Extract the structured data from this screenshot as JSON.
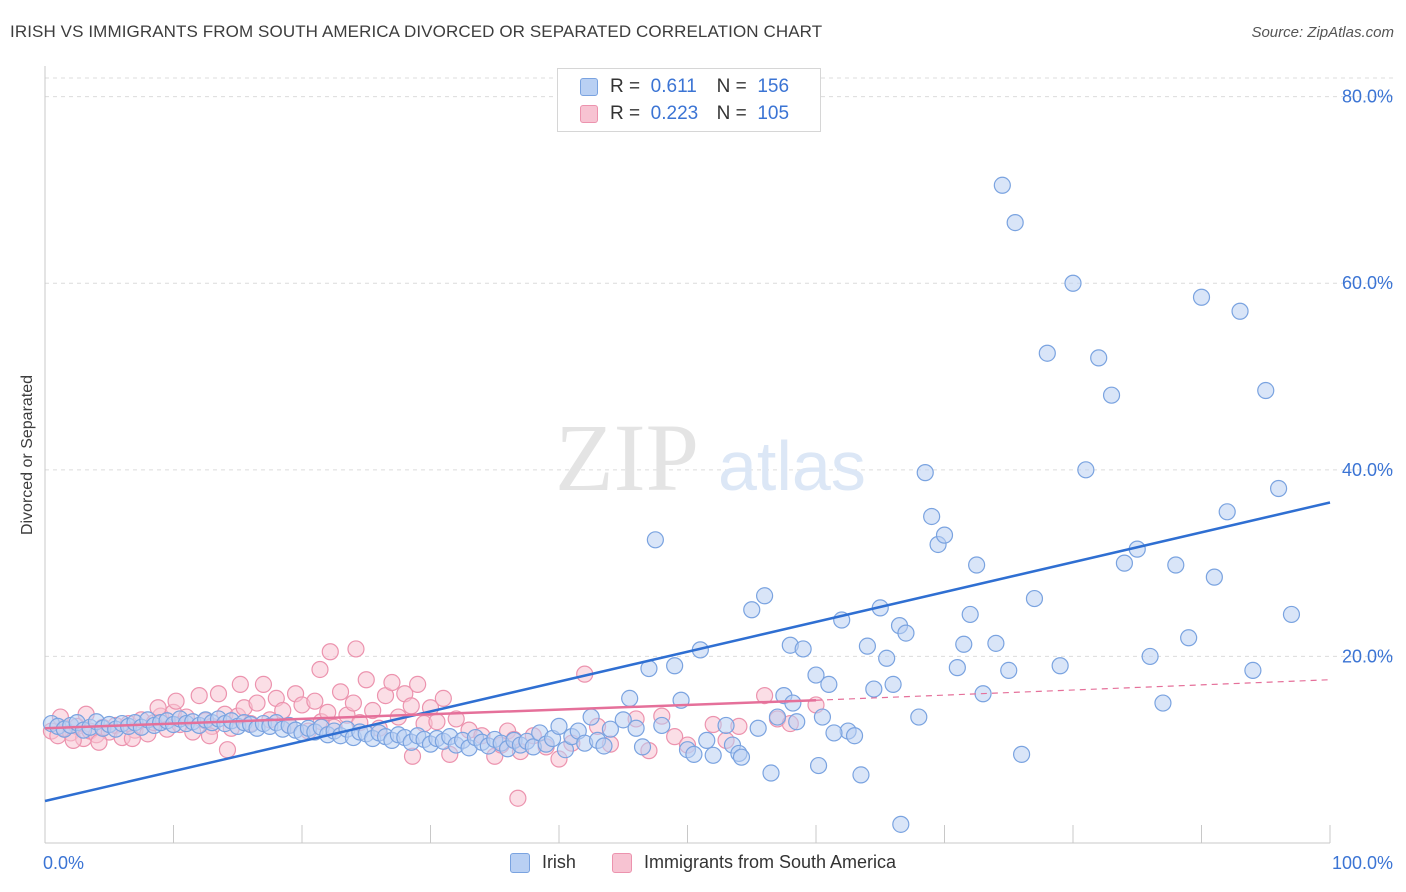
{
  "title": "IRISH VS IMMIGRANTS FROM SOUTH AMERICA DIVORCED OR SEPARATED CORRELATION CHART",
  "source": "Source: ZipAtlas.com",
  "watermark": {
    "zip": "ZIP",
    "atlas": "atlas"
  },
  "colors": {
    "irish_fill": "#b9d0f3",
    "irish_stroke": "#7aa3e0",
    "irish_line": "#2f6fd2",
    "sa_fill": "#f7c3d2",
    "sa_stroke": "#ec93ae",
    "sa_line": "#e5709a",
    "accent_text": "#3b74d4",
    "grid": "#dcdcdc"
  },
  "legend_top": {
    "rows": [
      {
        "r_label": "R =",
        "r_value": "0.611",
        "n_label": "N =",
        "n_value": "156"
      },
      {
        "r_label": "R =",
        "r_value": "0.223",
        "n_label": "N =",
        "n_value": "105"
      }
    ]
  },
  "legend_bottom": {
    "irish": "Irish",
    "south_america": "Immigrants from South America"
  },
  "chart_data": {
    "type": "scatter",
    "title": "IRISH VS IMMIGRANTS FROM SOUTH AMERICA DIVORCED OR SEPARATED CORRELATION CHART",
    "xlabel": "",
    "ylabel": "Divorced or Separated",
    "xlim": [
      0,
      100
    ],
    "ylim": [
      0,
      82
    ],
    "x_tick_labels": [
      "0.0%",
      "100.0%"
    ],
    "y_ticks": [
      20,
      40,
      60,
      80
    ],
    "y_tick_labels": [
      "20.0%",
      "40.0%",
      "60.0%",
      "80.0%"
    ],
    "grid": "horizontal dashed",
    "legend_placement": "top-center",
    "series": [
      {
        "name": "Irish",
        "R": 0.611,
        "N": 156,
        "trend": {
          "x": [
            0,
            100
          ],
          "y": [
            4.5,
            36.5
          ],
          "style": "solid"
        },
        "points": [
          [
            0.5,
            12.8
          ],
          [
            1,
            12.5
          ],
          [
            1.5,
            12.2
          ],
          [
            2,
            12.6
          ],
          [
            2.5,
            12.9
          ],
          [
            3,
            12.1
          ],
          [
            3.5,
            12.4
          ],
          [
            4,
            13.0
          ],
          [
            4.5,
            12.3
          ],
          [
            5,
            12.7
          ],
          [
            5.5,
            12.2
          ],
          [
            6,
            12.8
          ],
          [
            6.5,
            12.5
          ],
          [
            7,
            12.9
          ],
          [
            7.5,
            12.4
          ],
          [
            8,
            13.2
          ],
          [
            8.5,
            12.6
          ],
          [
            9,
            12.9
          ],
          [
            9.5,
            13.1
          ],
          [
            10,
            12.7
          ],
          [
            10.5,
            13.3
          ],
          [
            11,
            12.8
          ],
          [
            11.5,
            13.0
          ],
          [
            12,
            12.6
          ],
          [
            12.5,
            13.2
          ],
          [
            13,
            12.9
          ],
          [
            13.5,
            13.3
          ],
          [
            14,
            12.8
          ],
          [
            14.5,
            13.1
          ],
          [
            15,
            12.5
          ],
          [
            15.5,
            12.9
          ],
          [
            16,
            12.7
          ],
          [
            16.5,
            12.3
          ],
          [
            17,
            12.8
          ],
          [
            17.5,
            12.5
          ],
          [
            18,
            12.9
          ],
          [
            18.5,
            12.2
          ],
          [
            19,
            12.6
          ],
          [
            19.5,
            12.1
          ],
          [
            20,
            11.8
          ],
          [
            20.5,
            12.3
          ],
          [
            21,
            11.9
          ],
          [
            21.5,
            12.4
          ],
          [
            22,
            11.6
          ],
          [
            22.5,
            12.0
          ],
          [
            23,
            11.5
          ],
          [
            23.5,
            12.2
          ],
          [
            24,
            11.3
          ],
          [
            24.5,
            11.9
          ],
          [
            25,
            11.7
          ],
          [
            25.5,
            11.2
          ],
          [
            26,
            11.8
          ],
          [
            26.5,
            11.4
          ],
          [
            27,
            11.0
          ],
          [
            27.5,
            11.6
          ],
          [
            28,
            11.3
          ],
          [
            28.5,
            10.8
          ],
          [
            29,
            11.5
          ],
          [
            29.5,
            11.1
          ],
          [
            30,
            10.6
          ],
          [
            30.5,
            11.2
          ],
          [
            31,
            10.9
          ],
          [
            31.5,
            11.4
          ],
          [
            32,
            10.5
          ],
          [
            32.5,
            11.0
          ],
          [
            33,
            10.2
          ],
          [
            33.5,
            11.3
          ],
          [
            34,
            10.8
          ],
          [
            34.5,
            10.4
          ],
          [
            35,
            11.1
          ],
          [
            35.5,
            10.7
          ],
          [
            36,
            10.1
          ],
          [
            36.5,
            11.0
          ],
          [
            37,
            10.5
          ],
          [
            37.5,
            10.9
          ],
          [
            38,
            10.3
          ],
          [
            38.5,
            11.8
          ],
          [
            39,
            10.6
          ],
          [
            39.5,
            11.2
          ],
          [
            40,
            12.5
          ],
          [
            40.5,
            10.0
          ],
          [
            41,
            11.4
          ],
          [
            41.5,
            12.0
          ],
          [
            42,
            10.7
          ],
          [
            42.5,
            13.5
          ],
          [
            43,
            11.0
          ],
          [
            43.5,
            10.4
          ],
          [
            44,
            12.2
          ],
          [
            45,
            13.2
          ],
          [
            45.5,
            15.5
          ],
          [
            46,
            12.3
          ],
          [
            46.5,
            10.3
          ],
          [
            47,
            18.7
          ],
          [
            47.5,
            32.5
          ],
          [
            48,
            12.6
          ],
          [
            49,
            19.0
          ],
          [
            49.5,
            15.3
          ],
          [
            50,
            10.0
          ],
          [
            50.5,
            9.5
          ],
          [
            51,
            20.7
          ],
          [
            51.5,
            11.0
          ],
          [
            52,
            9.4
          ],
          [
            53,
            12.6
          ],
          [
            53.5,
            10.5
          ],
          [
            54,
            9.6
          ],
          [
            55,
            25.0
          ],
          [
            55.5,
            12.3
          ],
          [
            56,
            26.5
          ],
          [
            57,
            13.5
          ],
          [
            57.5,
            15.8
          ],
          [
            58,
            21.2
          ],
          [
            58.5,
            13.0
          ],
          [
            59,
            20.8
          ],
          [
            60,
            18.0
          ],
          [
            60.5,
            13.5
          ],
          [
            61,
            17.0
          ],
          [
            62,
            23.9
          ],
          [
            62.5,
            12.0
          ],
          [
            63,
            11.5
          ],
          [
            64,
            21.1
          ],
          [
            64.5,
            16.5
          ],
          [
            65,
            25.2
          ],
          [
            65.5,
            19.8
          ],
          [
            66,
            17.0
          ],
          [
            66.5,
            23.3
          ],
          [
            67,
            22.5
          ],
          [
            68,
            13.5
          ],
          [
            68.5,
            39.7
          ],
          [
            69,
            35.0
          ],
          [
            69.5,
            32.0
          ],
          [
            70,
            33.0
          ],
          [
            71,
            18.8
          ],
          [
            71.5,
            21.3
          ],
          [
            72,
            24.5
          ],
          [
            72.5,
            29.8
          ],
          [
            73,
            16.0
          ],
          [
            74,
            21.4
          ],
          [
            75,
            18.5
          ],
          [
            76,
            9.5
          ],
          [
            77,
            26.2
          ],
          [
            78,
            52.5
          ],
          [
            79,
            19.0
          ],
          [
            80,
            60.0
          ],
          [
            81,
            40.0
          ],
          [
            82,
            52.0
          ],
          [
            83,
            48.0
          ],
          [
            84,
            30.0
          ],
          [
            85,
            31.5
          ],
          [
            86,
            20.0
          ],
          [
            87,
            15.0
          ],
          [
            88,
            29.8
          ],
          [
            89,
            22.0
          ],
          [
            90,
            58.5
          ],
          [
            91,
            28.5
          ],
          [
            92,
            35.5
          ],
          [
            93,
            57.0
          ],
          [
            94,
            18.5
          ],
          [
            95,
            48.5
          ],
          [
            96,
            38.0
          ],
          [
            97,
            24.5
          ],
          [
            74.5,
            70.5
          ],
          [
            75.5,
            66.5
          ],
          [
            56.5,
            7.5
          ],
          [
            60.2,
            8.3
          ],
          [
            63.5,
            7.3
          ],
          [
            66.6,
            2.0
          ],
          [
            54.2,
            9.2
          ],
          [
            58.2,
            15.0
          ],
          [
            61.4,
            11.8
          ]
        ]
      },
      {
        "name": "Immigrants from South America",
        "R": 0.223,
        "N": 105,
        "trend": {
          "x": [
            0,
            60,
            100
          ],
          "y": [
            12.3,
            15.3,
            17.5
          ],
          "style": "solid to 60 then dashed"
        },
        "points": [
          [
            0.5,
            12.0
          ],
          [
            1,
            11.5
          ],
          [
            1.5,
            12.3
          ],
          [
            2,
            11.8
          ],
          [
            2.5,
            12.5
          ],
          [
            3,
            11.2
          ],
          [
            3.5,
            12.0
          ],
          [
            4,
            11.6
          ],
          [
            4.5,
            12.4
          ],
          [
            5,
            11.9
          ],
          [
            5.5,
            12.6
          ],
          [
            6,
            11.3
          ],
          [
            6.5,
            12.8
          ],
          [
            7,
            12.1
          ],
          [
            7.5,
            13.2
          ],
          [
            8,
            11.7
          ],
          [
            8.5,
            12.9
          ],
          [
            9,
            13.6
          ],
          [
            9.5,
            12.2
          ],
          [
            10,
            14.0
          ],
          [
            10.5,
            12.7
          ],
          [
            11,
            13.5
          ],
          [
            11.5,
            11.9
          ],
          [
            12,
            15.8
          ],
          [
            12.5,
            13.1
          ],
          [
            13,
            12.5
          ],
          [
            13.5,
            16.0
          ],
          [
            14,
            13.8
          ],
          [
            14.5,
            12.3
          ],
          [
            15,
            13.6
          ],
          [
            15.5,
            14.5
          ],
          [
            16,
            12.8
          ],
          [
            16.5,
            15.0
          ],
          [
            17,
            17.0
          ],
          [
            17.5,
            13.2
          ],
          [
            18,
            15.5
          ],
          [
            18.5,
            14.2
          ],
          [
            19,
            12.6
          ],
          [
            19.5,
            16.0
          ],
          [
            20,
            14.8
          ],
          [
            20.5,
            12.0
          ],
          [
            21,
            15.2
          ],
          [
            21.5,
            13.0
          ],
          [
            22,
            14.0
          ],
          [
            22.5,
            12.4
          ],
          [
            23,
            16.2
          ],
          [
            23.5,
            13.7
          ],
          [
            24,
            15.0
          ],
          [
            24.5,
            12.9
          ],
          [
            25,
            17.5
          ],
          [
            25.5,
            14.2
          ],
          [
            26,
            12.3
          ],
          [
            26.5,
            15.8
          ],
          [
            27,
            17.2
          ],
          [
            27.5,
            13.5
          ],
          [
            28,
            16.0
          ],
          [
            28.5,
            14.7
          ],
          [
            29,
            17.0
          ],
          [
            29.5,
            12.8
          ],
          [
            30,
            14.5
          ],
          [
            30.5,
            13.0
          ],
          [
            31,
            15.5
          ],
          [
            31.5,
            9.5
          ],
          [
            32,
            13.3
          ],
          [
            33,
            12.1
          ],
          [
            34,
            11.5
          ],
          [
            35,
            9.3
          ],
          [
            35.5,
            10.5
          ],
          [
            36,
            12.0
          ],
          [
            36.5,
            11.1
          ],
          [
            37,
            9.8
          ],
          [
            38,
            11.5
          ],
          [
            39,
            10.3
          ],
          [
            40,
            9.0
          ],
          [
            41,
            10.7
          ],
          [
            42,
            18.1
          ],
          [
            43,
            12.5
          ],
          [
            44,
            10.6
          ],
          [
            46,
            13.3
          ],
          [
            47,
            9.9
          ],
          [
            48,
            13.6
          ],
          [
            49,
            11.4
          ],
          [
            50,
            10.5
          ],
          [
            52,
            12.7
          ],
          [
            53,
            11.0
          ],
          [
            54,
            12.5
          ],
          [
            56,
            15.8
          ],
          [
            57,
            13.3
          ],
          [
            58,
            12.8
          ],
          [
            60,
            14.8
          ],
          [
            1.2,
            13.5
          ],
          [
            2.2,
            11.0
          ],
          [
            3.2,
            13.8
          ],
          [
            4.2,
            10.8
          ],
          [
            6.8,
            11.2
          ],
          [
            8.8,
            14.5
          ],
          [
            10.2,
            15.2
          ],
          [
            12.8,
            11.5
          ],
          [
            14.2,
            10.0
          ],
          [
            15.2,
            17.0
          ],
          [
            22.2,
            20.5
          ],
          [
            24.2,
            20.8
          ],
          [
            21.4,
            18.6
          ],
          [
            28.6,
            9.3
          ],
          [
            36.8,
            4.8
          ]
        ]
      }
    ]
  }
}
